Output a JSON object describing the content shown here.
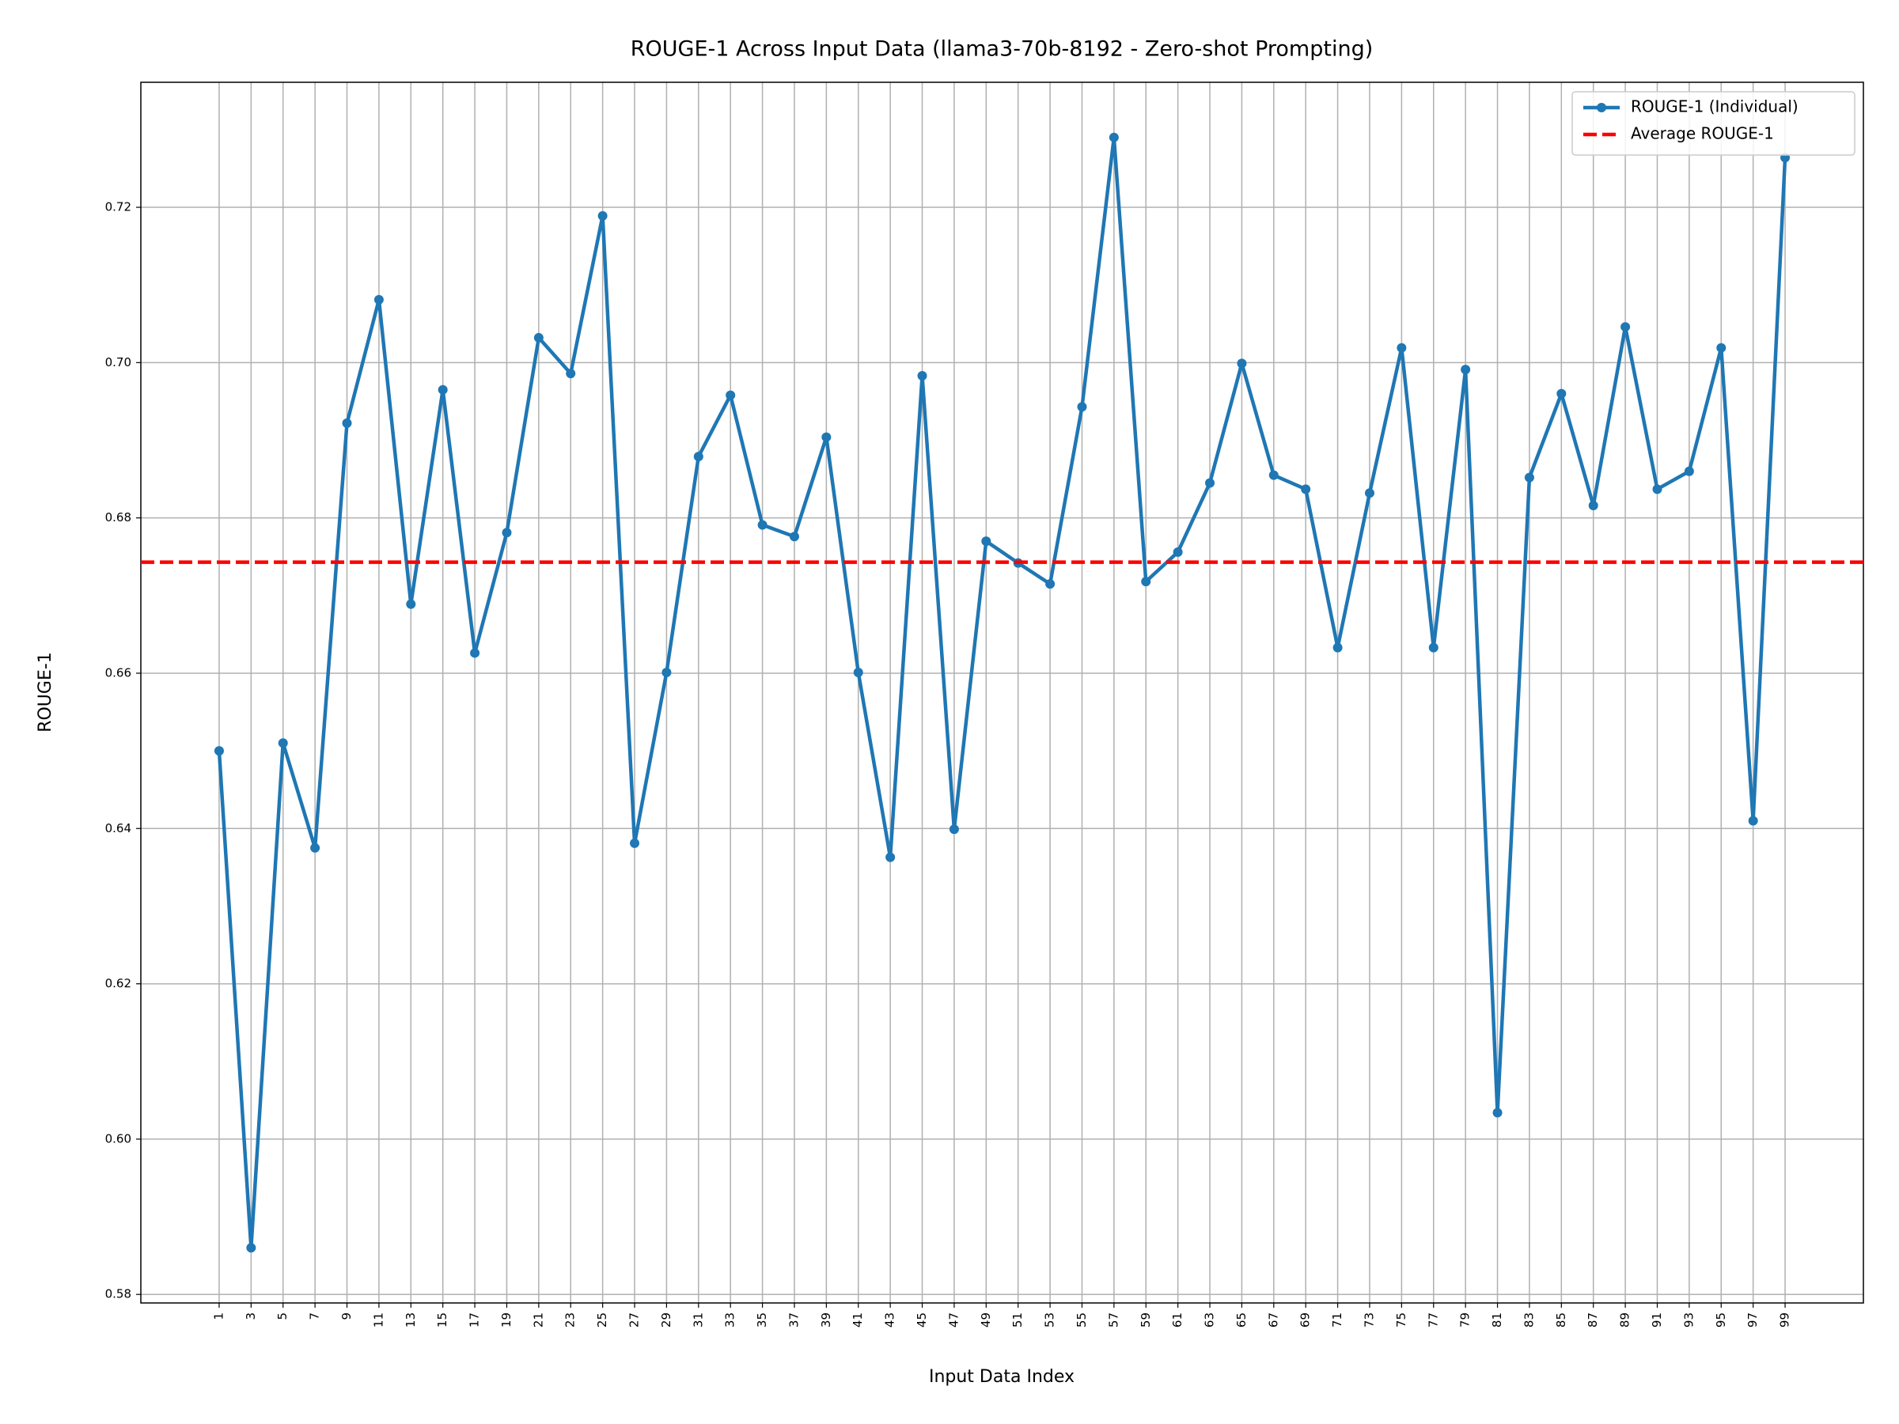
{
  "chart_data": {
    "type": "line",
    "title": "ROUGE-1 Across Input Data (llama3-70b-8192 - Zero-shot Prompting)",
    "x_label": "Input Data Index",
    "y_label": "ROUGE-1",
    "x": [
      1,
      3,
      5,
      7,
      9,
      11,
      13,
      15,
      17,
      19,
      21,
      23,
      25,
      27,
      29,
      31,
      33,
      35,
      37,
      39,
      41,
      43,
      45,
      47,
      49,
      51,
      53,
      55,
      57,
      59,
      61,
      63,
      65,
      67,
      69,
      71,
      73,
      75,
      77,
      79,
      81,
      83,
      85,
      87,
      89,
      91,
      93,
      95,
      97,
      99
    ],
    "series": [
      {
        "name": "ROUGE-1 (Individual)",
        "color": "#1f77b4",
        "marker": true,
        "values": [
          0.65,
          0.586,
          0.651,
          0.6375,
          0.6922,
          0.7081,
          0.6689,
          0.6965,
          0.6626,
          0.6781,
          0.7032,
          0.6986,
          0.7189,
          0.6381,
          0.6601,
          0.6879,
          0.6958,
          0.6791,
          0.6776,
          0.6904,
          0.6601,
          0.6363,
          0.6983,
          0.6399,
          0.677,
          0.6742,
          0.6715,
          0.6943,
          0.729,
          0.6718,
          0.6756,
          0.6845,
          0.6999,
          0.6855,
          0.6837,
          0.6633,
          0.6832,
          0.7019,
          0.6633,
          0.6991,
          0.6034,
          0.6852,
          0.696,
          0.6816,
          0.7046,
          0.6837,
          0.686,
          0.7019,
          0.641,
          0.7264
        ]
      },
      {
        "name": "Average ROUGE-1",
        "color": "#ff0000",
        "dashed": true,
        "value": 0.6743
      }
    ],
    "xlim": [
      -3.9,
      103.9
    ],
    "xticks": [
      1,
      3,
      5,
      7,
      9,
      11,
      13,
      15,
      17,
      19,
      21,
      23,
      25,
      27,
      29,
      31,
      33,
      35,
      37,
      39,
      41,
      43,
      45,
      47,
      49,
      51,
      53,
      55,
      57,
      59,
      61,
      63,
      65,
      67,
      69,
      71,
      73,
      75,
      77,
      79,
      81,
      83,
      85,
      87,
      89,
      91,
      93,
      95,
      97,
      99
    ],
    "ylim": [
      0.5789,
      0.7361
    ],
    "yticks": [
      0.58,
      {
        "value": 0.6,
        "label": "0.60"
      },
      0.62,
      0.64,
      0.66,
      0.68,
      {
        "value": 0.7,
        "label": "0.70"
      },
      0.72
    ],
    "grid": true,
    "legend": "upper right"
  }
}
